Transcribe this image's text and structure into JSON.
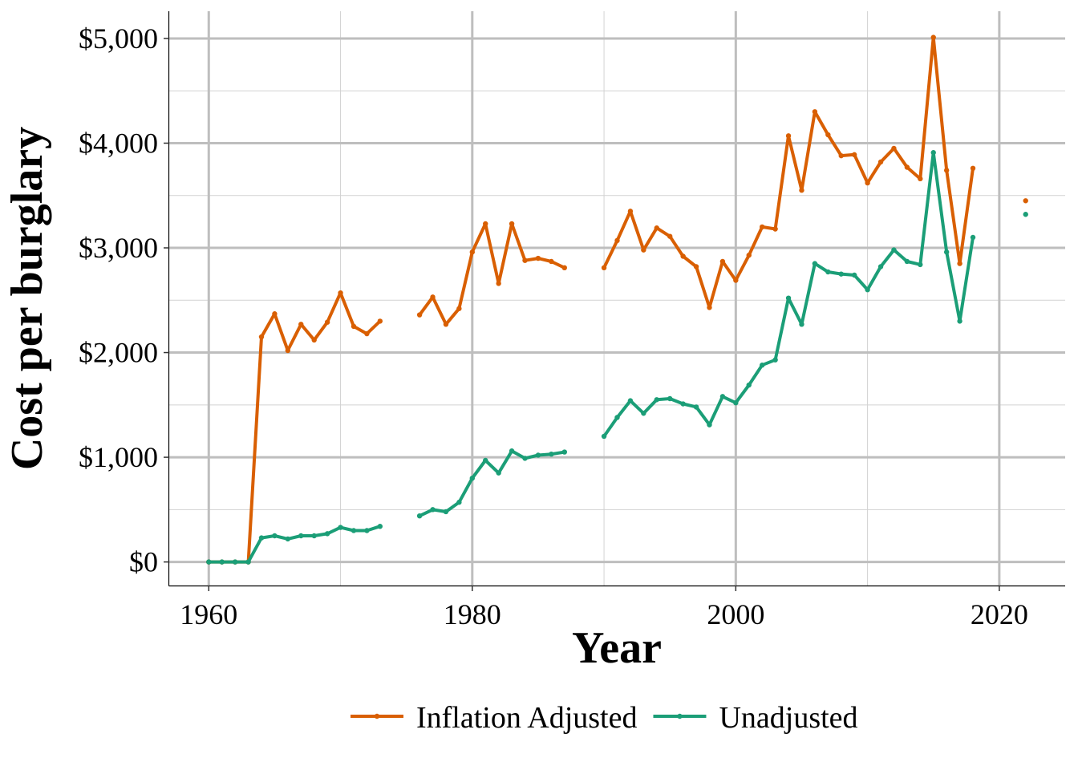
{
  "chart_data": {
    "type": "line",
    "xlabel": "Year",
    "ylabel": "Cost per burglary",
    "xlim": [
      1957,
      2025
    ],
    "ylim": [
      -225,
      5260
    ],
    "x_ticks": [
      1960,
      1980,
      2000,
      2020
    ],
    "y_ticks": [
      0,
      1000,
      2000,
      3000,
      4000,
      5000
    ],
    "y_tick_labels": [
      "$0",
      "$1,000",
      "$2,000",
      "$3,000",
      "$4,000",
      "$5,000"
    ],
    "grid": true,
    "legend_position": "bottom",
    "series": [
      {
        "name": "Inflation Adjusted",
        "color": "#d95f02",
        "points": [
          [
            1960,
            0
          ],
          [
            1961,
            0
          ],
          [
            1962,
            0
          ],
          [
            1963,
            0
          ],
          [
            1964,
            2150
          ],
          [
            1965,
            2370
          ],
          [
            1966,
            2020
          ],
          [
            1967,
            2270
          ],
          [
            1968,
            2120
          ],
          [
            1969,
            2290
          ],
          [
            1970,
            2570
          ],
          [
            1971,
            2250
          ],
          [
            1972,
            2180
          ],
          [
            1973,
            2300
          ],
          [
            1974,
            null
          ],
          [
            1975,
            null
          ],
          [
            1976,
            2360
          ],
          [
            1977,
            2530
          ],
          [
            1978,
            2270
          ],
          [
            1979,
            2420
          ],
          [
            1980,
            2960
          ],
          [
            1981,
            3230
          ],
          [
            1982,
            2660
          ],
          [
            1983,
            3230
          ],
          [
            1984,
            2880
          ],
          [
            1985,
            2900
          ],
          [
            1986,
            2870
          ],
          [
            1987,
            2810
          ],
          [
            1988,
            null
          ],
          [
            1989,
            null
          ],
          [
            1990,
            2810
          ],
          [
            1991,
            3070
          ],
          [
            1992,
            3350
          ],
          [
            1993,
            2980
          ],
          [
            1994,
            3190
          ],
          [
            1995,
            3110
          ],
          [
            1996,
            2920
          ],
          [
            1997,
            2820
          ],
          [
            1998,
            2430
          ],
          [
            1999,
            2870
          ],
          [
            2000,
            2690
          ],
          [
            2001,
            2930
          ],
          [
            2002,
            3200
          ],
          [
            2003,
            3180
          ],
          [
            2004,
            4070
          ],
          [
            2005,
            3550
          ],
          [
            2006,
            4300
          ],
          [
            2007,
            4080
          ],
          [
            2008,
            3880
          ],
          [
            2009,
            3890
          ],
          [
            2010,
            3620
          ],
          [
            2011,
            3820
          ],
          [
            2012,
            3950
          ],
          [
            2013,
            3770
          ],
          [
            2014,
            3660
          ],
          [
            2015,
            5010
          ],
          [
            2016,
            3740
          ],
          [
            2017,
            2850
          ],
          [
            2018,
            3760
          ],
          [
            2019,
            null
          ],
          [
            2020,
            null
          ],
          [
            2021,
            null
          ],
          [
            2022,
            3450
          ]
        ]
      },
      {
        "name": "Unadjusted",
        "color": "#1b9e77",
        "points": [
          [
            1960,
            0
          ],
          [
            1961,
            0
          ],
          [
            1962,
            0
          ],
          [
            1963,
            0
          ],
          [
            1964,
            230
          ],
          [
            1965,
            250
          ],
          [
            1966,
            220
          ],
          [
            1967,
            250
          ],
          [
            1968,
            250
          ],
          [
            1969,
            270
          ],
          [
            1970,
            330
          ],
          [
            1971,
            300
          ],
          [
            1972,
            300
          ],
          [
            1973,
            340
          ],
          [
            1974,
            null
          ],
          [
            1975,
            null
          ],
          [
            1976,
            440
          ],
          [
            1977,
            500
          ],
          [
            1978,
            480
          ],
          [
            1979,
            570
          ],
          [
            1980,
            800
          ],
          [
            1981,
            970
          ],
          [
            1982,
            850
          ],
          [
            1983,
            1060
          ],
          [
            1984,
            990
          ],
          [
            1985,
            1020
          ],
          [
            1986,
            1030
          ],
          [
            1987,
            1050
          ],
          [
            1988,
            null
          ],
          [
            1989,
            null
          ],
          [
            1990,
            1200
          ],
          [
            1991,
            1380
          ],
          [
            1992,
            1540
          ],
          [
            1993,
            1420
          ],
          [
            1994,
            1550
          ],
          [
            1995,
            1560
          ],
          [
            1996,
            1510
          ],
          [
            1997,
            1480
          ],
          [
            1998,
            1310
          ],
          [
            1999,
            1580
          ],
          [
            2000,
            1520
          ],
          [
            2001,
            1690
          ],
          [
            2002,
            1880
          ],
          [
            2003,
            1930
          ],
          [
            2004,
            2520
          ],
          [
            2005,
            2270
          ],
          [
            2006,
            2850
          ],
          [
            2007,
            2770
          ],
          [
            2008,
            2750
          ],
          [
            2009,
            2740
          ],
          [
            2010,
            2600
          ],
          [
            2011,
            2820
          ],
          [
            2012,
            2980
          ],
          [
            2013,
            2870
          ],
          [
            2014,
            2840
          ],
          [
            2015,
            3910
          ],
          [
            2016,
            2960
          ],
          [
            2017,
            2300
          ],
          [
            2018,
            3100
          ],
          [
            2019,
            null
          ],
          [
            2020,
            null
          ],
          [
            2021,
            null
          ],
          [
            2022,
            3320
          ]
        ]
      }
    ]
  }
}
